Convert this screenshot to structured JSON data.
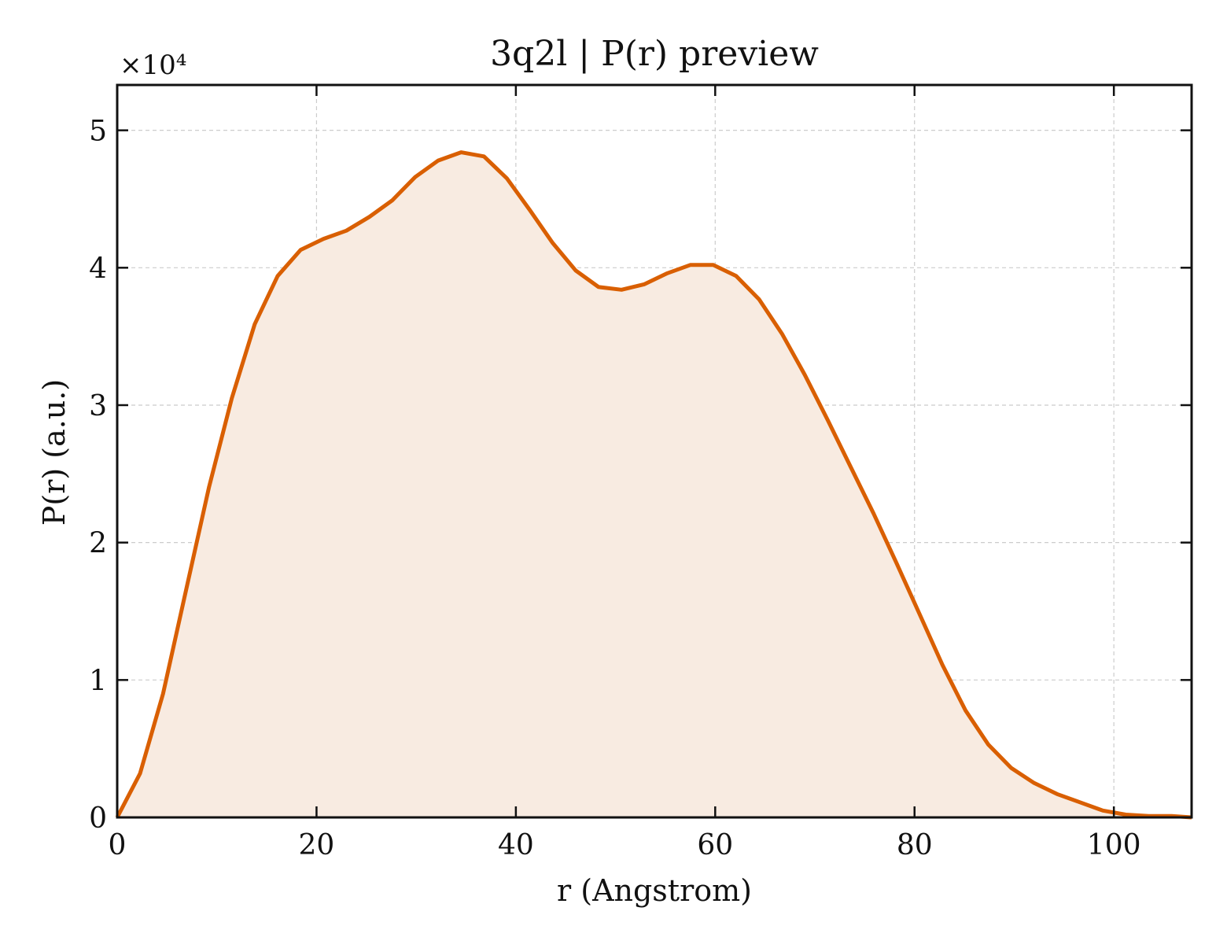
{
  "chart_data": {
    "type": "area",
    "title": "3q2l | P(r) preview",
    "xlabel": "r (Angstrom)",
    "ylabel": "P(r) (a.u.)",
    "y_multiplier_label": "×10⁴",
    "xlim": [
      0,
      107.8
    ],
    "ylim": [
      0,
      5.33
    ],
    "xticks": [
      0,
      20,
      40,
      60,
      80,
      100
    ],
    "xtick_labels": [
      "0",
      "20",
      "40",
      "60",
      "80",
      "100"
    ],
    "yticks": [
      0,
      1,
      2,
      3,
      4,
      5
    ],
    "ytick_labels": [
      "0",
      "1",
      "2",
      "3",
      "4",
      "5"
    ],
    "grid": true,
    "legend": "none",
    "line_color": "#d95f02",
    "fill_color": "#f8ebe1",
    "series": [
      {
        "x": [
          0,
          2.3,
          4.6,
          6.9,
          9.2,
          11.5,
          13.8,
          16.1,
          18.4,
          20.7,
          23.0,
          25.3,
          27.6,
          29.9,
          32.2,
          34.5,
          36.8,
          39.1,
          41.4,
          43.7,
          46.0,
          48.3,
          50.6,
          52.9,
          55.2,
          57.5,
          59.8,
          62.1,
          64.4,
          66.7,
          69.0,
          71.3,
          73.6,
          75.9,
          78.2,
          80.5,
          82.8,
          85.1,
          87.4,
          89.7,
          92.0,
          94.3,
          96.6,
          98.9,
          101.2,
          103.5,
          105.8,
          107.8
        ],
        "values": [
          0.0,
          0.32,
          0.9,
          1.65,
          2.4,
          3.05,
          3.59,
          3.94,
          4.13,
          4.21,
          4.27,
          4.37,
          4.49,
          4.66,
          4.78,
          4.84,
          4.81,
          4.65,
          4.42,
          4.18,
          3.98,
          3.86,
          3.84,
          3.88,
          3.96,
          4.02,
          4.02,
          3.94,
          3.77,
          3.52,
          3.22,
          2.89,
          2.55,
          2.21,
          1.85,
          1.48,
          1.11,
          0.78,
          0.53,
          0.36,
          0.25,
          0.17,
          0.11,
          0.05,
          0.02,
          0.01,
          0.01,
          0.0
        ]
      }
    ]
  }
}
